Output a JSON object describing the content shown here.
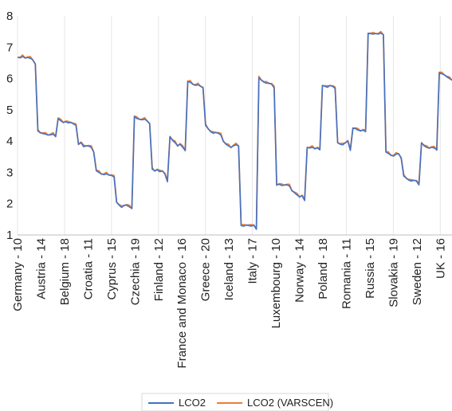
{
  "chart_data": {
    "type": "line",
    "title": "",
    "xlabel": "",
    "ylabel": "",
    "ylim": [
      1,
      8
    ],
    "yticks": [
      1,
      2,
      3,
      4,
      5,
      6,
      7,
      8
    ],
    "grid": "vertical",
    "legend_position": "bottom-center",
    "x_tick_labels": [
      "Germany - 10",
      "Austria - 14",
      "Belgium - 18",
      "Croatia - 11",
      "Cyprus - 15",
      "Czechia - 19",
      "Finland - 12",
      "France and Monaco - 16",
      "Greece - 20",
      "Iceland - 13",
      "Italy - 17",
      "Luxembourg - 10",
      "Norway - 14",
      "Poland - 18",
      "Romania - 11",
      "Russia - 15",
      "Slovakia - 19",
      "Sweden - 12",
      "UK - 16"
    ],
    "segments": [
      {
        "region": "Germany",
        "points": [
          6.68,
          6.66,
          6.7,
          6.66,
          6.67,
          6.65,
          6.6,
          6.45
        ]
      },
      {
        "region": "Austria",
        "points": [
          4.32,
          4.27,
          4.24,
          4.22,
          4.2,
          4.2,
          4.22,
          4.15
        ]
      },
      {
        "region": "Belgium",
        "points": [
          4.72,
          4.65,
          4.6,
          4.62,
          4.58,
          4.6,
          4.55,
          4.5
        ]
      },
      {
        "region": "Belgium (low)",
        "points": [
          3.9,
          3.95,
          3.82,
          3.85,
          3.84,
          3.8,
          3.65
        ]
      },
      {
        "region": "Croatia",
        "points": [
          3.05,
          3.0,
          2.95,
          2.93,
          2.95,
          2.92,
          2.9,
          2.85
        ]
      },
      {
        "region": "Cyprus",
        "points": [
          2.05,
          1.95,
          1.88,
          1.95,
          1.95,
          1.9,
          1.85
        ]
      },
      {
        "region": "Czechia",
        "points": [
          4.78,
          4.72,
          4.7,
          4.68,
          4.7,
          4.65,
          4.55
        ]
      },
      {
        "region": "Czechia (low)",
        "points": [
          3.1,
          3.05,
          3.08,
          3.02,
          3.05,
          2.95,
          2.7
        ]
      },
      {
        "region": "Finland",
        "points": [
          4.15,
          4.02,
          3.95,
          3.85,
          3.9,
          3.8,
          3.7
        ]
      },
      {
        "region": "France and Monaco",
        "points": [
          5.9,
          5.88,
          5.82,
          5.78,
          5.8,
          5.76,
          5.7
        ]
      },
      {
        "region": "Greece",
        "points": [
          4.5,
          4.4,
          4.3,
          4.25,
          4.28,
          4.25,
          4.2
        ]
      },
      {
        "region": "Greece (low)",
        "points": [
          4.0,
          3.9,
          3.85,
          3.8,
          3.85,
          3.88,
          3.85
        ]
      },
      {
        "region": "Iceland",
        "points": [
          1.3,
          1.28,
          1.32,
          1.3,
          1.28,
          1.32,
          1.18
        ]
      },
      {
        "region": "Italy",
        "points": [
          6.02,
          5.95,
          5.88,
          5.85,
          5.85,
          5.82,
          5.7
        ]
      },
      {
        "region": "Luxembourg",
        "points": [
          2.6,
          2.62,
          2.58,
          2.6,
          2.6,
          2.57
        ]
      },
      {
        "region": "Luxembourg (low)",
        "points": [
          2.42,
          2.35,
          2.28,
          2.22,
          2.25,
          2.1
        ]
      },
      {
        "region": "Norway",
        "points": [
          3.8,
          3.78,
          3.8,
          3.76,
          3.78,
          3.72
        ]
      },
      {
        "region": "Poland",
        "points": [
          5.78,
          5.75,
          5.72,
          5.78,
          5.75,
          5.68
        ]
      },
      {
        "region": "Poland (low)",
        "points": [
          3.95,
          3.9,
          3.88,
          3.95,
          4.0,
          3.7
        ]
      },
      {
        "region": "Romania",
        "points": [
          4.42,
          4.4,
          4.35,
          4.33,
          4.35,
          4.3
        ]
      },
      {
        "region": "Russia",
        "points": [
          7.45,
          7.43,
          7.42,
          7.44,
          7.42,
          7.45,
          7.4
        ]
      },
      {
        "region": "Slovakia",
        "points": [
          3.65,
          3.6,
          3.55,
          3.52,
          3.58,
          3.6,
          3.45
        ]
      },
      {
        "region": "Slovakia (low)",
        "points": [
          2.88,
          2.82,
          2.75,
          2.72,
          2.75,
          2.72,
          2.6
        ]
      },
      {
        "region": "Sweden",
        "points": [
          3.95,
          3.85,
          3.8,
          3.78,
          3.8,
          3.78,
          3.72
        ]
      },
      {
        "region": "UK",
        "points": [
          6.18,
          6.15,
          6.12,
          6.05,
          6.0,
          5.95
        ]
      }
    ],
    "series": [
      {
        "name": "LCO2",
        "color": "#4472C4",
        "offset": 0
      },
      {
        "name": "LCO2 (VARSCEN)",
        "color": "#ED7D31",
        "offset": 0.02
      }
    ]
  }
}
